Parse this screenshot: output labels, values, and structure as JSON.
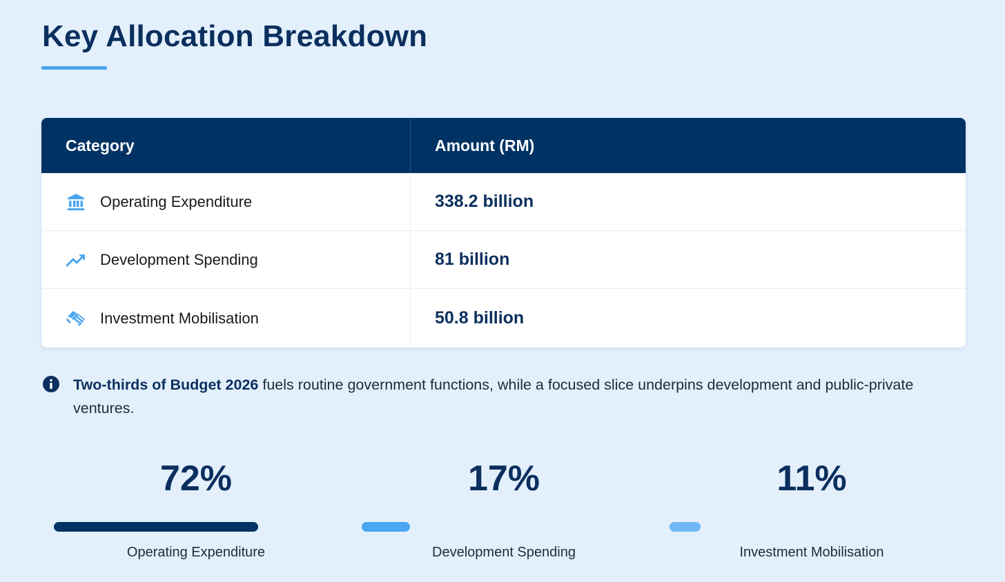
{
  "page": {
    "title": "Key Allocation Breakdown"
  },
  "table": {
    "headers": {
      "category": "Category",
      "amount": "Amount (RM)"
    },
    "rows": [
      {
        "icon": "bank-icon",
        "category": "Operating Expenditure",
        "amount": "338.2 billion"
      },
      {
        "icon": "trending-up-icon",
        "category": "Development Spending",
        "amount": "81 billion"
      },
      {
        "icon": "handshake-icon",
        "category": "Investment Mobilisation",
        "amount": "50.8 billion"
      }
    ]
  },
  "note": {
    "icon": "info-icon",
    "strong": "Two-thirds of Budget 2026",
    "text": " fuels routine government functions, while a focused slice underpins development and public-private ventures."
  },
  "stats": [
    {
      "value": "72%",
      "label": "Operating Expenditure",
      "percent": 72,
      "color": "#003264"
    },
    {
      "value": "17%",
      "label": "Development Spending",
      "percent": 17,
      "color": "#4aa6f0"
    },
    {
      "value": "11%",
      "label": "Investment Mobilisation",
      "percent": 11,
      "color": "#6fb8f5"
    }
  ],
  "colors": {
    "background": "#e3f0fc",
    "header": "#003264",
    "accent": "#47a4f0",
    "text_dark": "#0b2f5e"
  }
}
